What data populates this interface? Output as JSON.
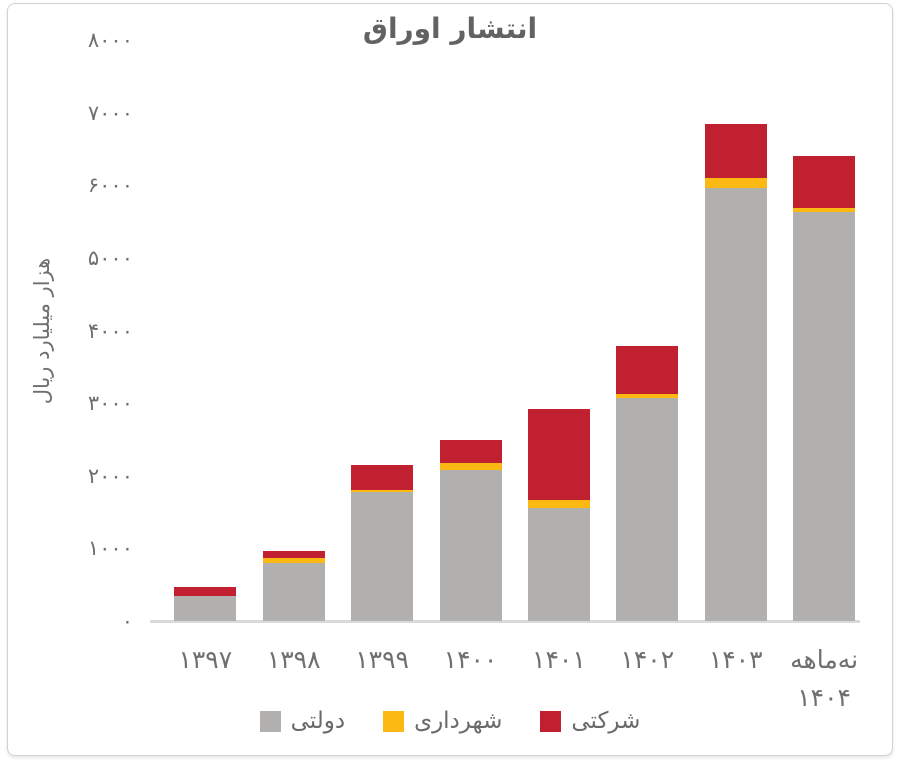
{
  "page": {
    "background": "#ffffff",
    "card_border_color": "#d2d2d2",
    "text_color": "#6f6f6f"
  },
  "chart_data": {
    "type": "bar",
    "stacked": true,
    "direction": "rtl",
    "title": "انتشار اوراق",
    "ylabel": "هزار میلیارد ریال",
    "xlabel": "",
    "grid": false,
    "legend_position": "bottom",
    "ylim": [
      0,
      8000
    ],
    "categories": [
      "۱۳۹۷",
      "۱۳۹۸",
      "۱۳۹۹",
      "۱۴۰۰",
      "۱۴۰۱",
      "۱۴۰۲",
      "۱۴۰۳",
      "نه‌ماهه ۱۴۰۴"
    ],
    "category_display_lines": [
      [
        "۱۳۹۷"
      ],
      [
        "۱۳۹۸"
      ],
      [
        "۱۳۹۹"
      ],
      [
        "۱۴۰۰"
      ],
      [
        "۱۴۰۱"
      ],
      [
        "۱۴۰۲"
      ],
      [
        "۱۴۰۳"
      ],
      [
        "نه‌ماهه",
        "۱۴۰۴"
      ]
    ],
    "series": [
      {
        "name": "دولتی",
        "color": "#b1b0af",
        "values": [
          350,
          795,
          1780,
          2080,
          1560,
          3065,
          5960,
          5625
        ]
      },
      {
        "name": "شهرداری",
        "color": "#fcb813",
        "values": [
          0,
          70,
          20,
          90,
          105,
          55,
          145,
          60
        ]
      },
      {
        "name": "شرکتی",
        "color": "#c12030",
        "values": [
          115,
          100,
          350,
          320,
          1255,
          665,
          740,
          720
        ]
      }
    ],
    "yticks": {
      "values": [
        0,
        1000,
        2000,
        3000,
        4000,
        5000,
        6000,
        7000,
        8000
      ],
      "labels": [
        "۰",
        "۱۰۰۰",
        "۲۰۰۰",
        "۳۰۰۰",
        "۴۰۰۰",
        "۵۰۰۰",
        "۶۰۰۰",
        "۷۰۰۰",
        "۸۰۰۰"
      ]
    }
  }
}
